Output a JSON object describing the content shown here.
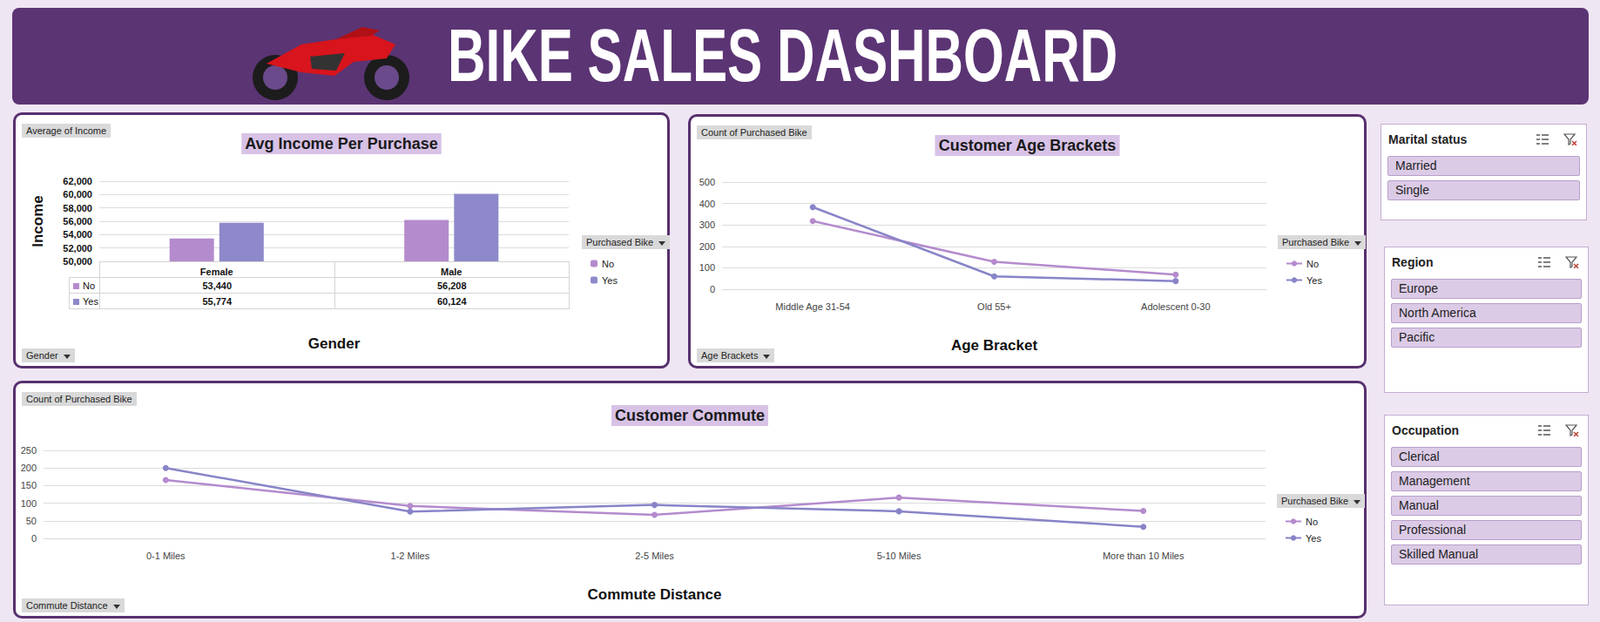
{
  "header": {
    "title": "BIKE SALES DASHBOARD"
  },
  "chart_data": [
    {
      "type": "bar",
      "title": "Avg Income Per Purchase",
      "x_label": "Gender",
      "y_label": "Income",
      "field_buttons": [
        "Average of Income",
        "Gender"
      ],
      "legend_title": "Purchased Bike",
      "legend": "right",
      "categories": [
        "Female",
        "Male"
      ],
      "series": [
        {
          "name": "No",
          "color": "#b48bcd",
          "values": [
            53440,
            56208
          ],
          "value_labels": [
            "53,440",
            "56,208"
          ]
        },
        {
          "name": "Yes",
          "color": "#8d89ca",
          "values": [
            55774,
            60124
          ],
          "value_labels": [
            "55,774",
            "60,124"
          ]
        }
      ],
      "ylim": [
        50000,
        62000
      ],
      "yticks": [
        {
          "value": 50000,
          "label": "50,000"
        },
        {
          "value": 52000,
          "label": "52,000"
        },
        {
          "value": 54000,
          "label": "54,000"
        },
        {
          "value": 56000,
          "label": "56,000"
        },
        {
          "value": 58000,
          "label": "58,000"
        },
        {
          "value": 60000,
          "label": "60,000"
        },
        {
          "value": 62000,
          "label": "62,000"
        }
      ],
      "grid": true
    },
    {
      "type": "line",
      "title": "Customer Age Brackets",
      "x_label": "Age Bracket",
      "field_buttons": [
        "Count of Purchased Bike",
        "Age Brackets"
      ],
      "legend_title": "Purchased Bike",
      "legend": "right",
      "marker": "circle",
      "categories": [
        "Middle Age 31-54",
        "Old 55+",
        "Adolescent 0-30"
      ],
      "series": [
        {
          "name": "No",
          "color": "#b48bcd",
          "values": [
            318,
            128,
            68
          ]
        },
        {
          "name": "Yes",
          "color": "#8884c8",
          "values": [
            383,
            60,
            38
          ]
        }
      ],
      "ylim": [
        0,
        500
      ],
      "yticks": [
        0,
        100,
        200,
        300,
        400,
        500
      ],
      "grid": true
    },
    {
      "type": "line",
      "title": "Customer Commute",
      "x_label": "Commute Distance",
      "field_buttons": [
        "Count of Purchased Bike",
        "Commute Distance"
      ],
      "legend_title": "Purchased Bike",
      "legend": "right",
      "marker": "circle",
      "categories": [
        "0-1 Miles",
        "1-2 Miles",
        "2-5 Miles",
        "5-10 Miles",
        "More than 10 Miles"
      ],
      "series": [
        {
          "name": "No",
          "color": "#b48bcd",
          "values": [
            166,
            92,
            67,
            116,
            78
          ]
        },
        {
          "name": "Yes",
          "color": "#8884c8",
          "values": [
            200,
            76,
            95,
            77,
            33
          ]
        }
      ],
      "ylim": [
        0,
        250
      ],
      "yticks": [
        0,
        50,
        100,
        150,
        200,
        250
      ],
      "grid": true
    }
  ],
  "slicers": [
    {
      "title": "Marital status",
      "items": [
        "Married",
        "Single"
      ]
    },
    {
      "title": "Region",
      "items": [
        "Europe",
        "North America",
        "Pacific"
      ]
    },
    {
      "title": "Occupation",
      "items": [
        "Clerical",
        "Management",
        "Manual",
        "Professional",
        "Skilled Manual"
      ]
    }
  ]
}
